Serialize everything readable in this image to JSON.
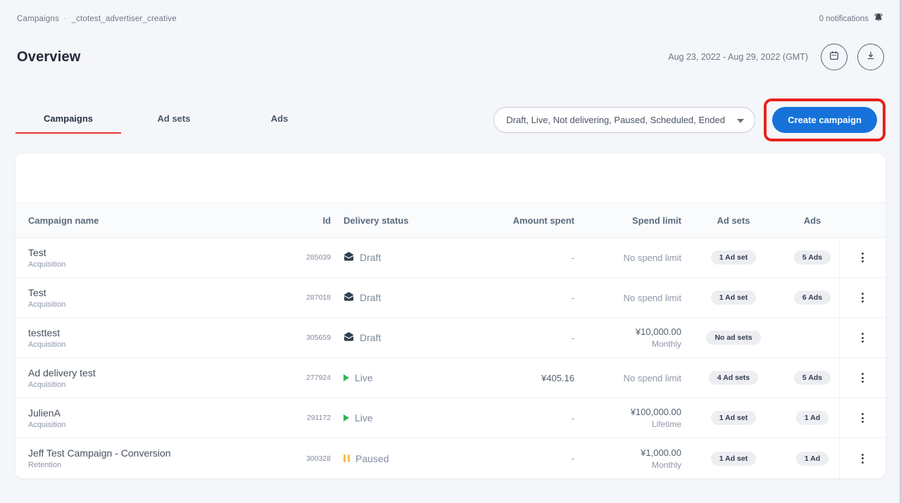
{
  "breadcrumb": {
    "items": [
      "Campaigns",
      "_ctotest_advertiser_creative"
    ],
    "separator": "·"
  },
  "notifications": {
    "label": "0 notifications"
  },
  "header": {
    "title": "Overview",
    "date_range": "Aug 23, 2022 - Aug 29, 2022 (GMT)"
  },
  "tabs": [
    {
      "label": "Campaigns",
      "active": true
    },
    {
      "label": "Ad sets",
      "active": false
    },
    {
      "label": "Ads",
      "active": false
    }
  ],
  "filter": {
    "value": "Draft, Live, Not delivering, Paused, Scheduled, Ended"
  },
  "create_button": {
    "label": "Create campaign"
  },
  "colors": {
    "accent_blue": "#1672d9",
    "annotation_red": "#e8231b",
    "tab_underline_red": "#e8372c",
    "status_live_green": "#2fb45d",
    "status_paused_yellow": "#f1c14b"
  },
  "table": {
    "columns": [
      "Campaign name",
      "Id",
      "Delivery status",
      "Amount spent",
      "Spend limit",
      "Ad sets",
      "Ads"
    ],
    "rows": [
      {
        "name": "Test",
        "subtitle": "Acquisition",
        "id": "285039",
        "status": {
          "label": "Draft",
          "type": "draft"
        },
        "amount_spent": "-",
        "spend_limit": {
          "primary": "No spend limit",
          "secondary": null
        },
        "ad_sets": "1 Ad set",
        "ads": "5 Ads"
      },
      {
        "name": "Test",
        "subtitle": "Acquisition",
        "id": "287018",
        "status": {
          "label": "Draft",
          "type": "draft"
        },
        "amount_spent": "-",
        "spend_limit": {
          "primary": "No spend limit",
          "secondary": null
        },
        "ad_sets": "1 Ad set",
        "ads": "6 Ads"
      },
      {
        "name": "testtest",
        "subtitle": "Acquisition",
        "id": "305659",
        "status": {
          "label": "Draft",
          "type": "draft"
        },
        "amount_spent": "-",
        "spend_limit": {
          "primary": "¥10,000.00",
          "secondary": "Monthly"
        },
        "ad_sets": "No ad sets",
        "ads": null
      },
      {
        "name": "Ad delivery test",
        "subtitle": "Acquisition",
        "id": "277924",
        "status": {
          "label": "Live",
          "type": "live"
        },
        "amount_spent": "¥405.16",
        "spend_limit": {
          "primary": "No spend limit",
          "secondary": null
        },
        "ad_sets": "4 Ad sets",
        "ads": "5 Ads"
      },
      {
        "name": "JulienA",
        "subtitle": "Acquisition",
        "id": "291172",
        "status": {
          "label": "Live",
          "type": "live"
        },
        "amount_spent": "-",
        "spend_limit": {
          "primary": "¥100,000.00",
          "secondary": "Lifetime"
        },
        "ad_sets": "1 Ad set",
        "ads": "1 Ad"
      },
      {
        "name": "Jeff Test Campaign - Conversion",
        "subtitle": "Retention",
        "id": "300328",
        "status": {
          "label": "Paused",
          "type": "paused"
        },
        "amount_spent": "-",
        "spend_limit": {
          "primary": "¥1,000.00",
          "secondary": "Monthly"
        },
        "ad_sets": "1 Ad set",
        "ads": "1 Ad"
      }
    ]
  }
}
